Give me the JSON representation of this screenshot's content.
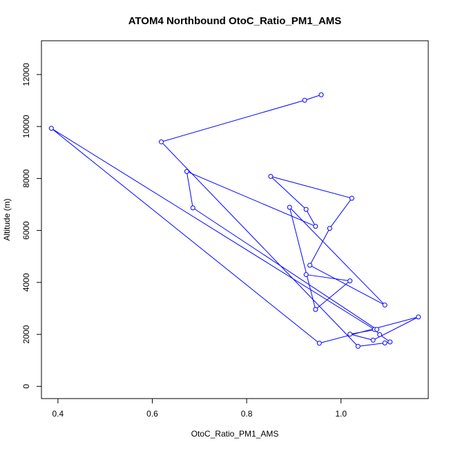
{
  "chart_data": {
    "type": "line",
    "title": "ATOM4 Northbound OtoC_Ratio_PM1_AMS",
    "xlabel": "OtoC_Ratio_PM1_AMS",
    "ylabel": "Altitude (m)",
    "xlim": [
      0.365,
      1.185
    ],
    "ylim": [
      -470,
      13300
    ],
    "x_ticks": [
      0.4,
      0.6,
      0.8,
      1.0
    ],
    "x_tick_labels": [
      "0.4",
      "0.6",
      "0.8",
      "1.0"
    ],
    "y_ticks": [
      0,
      2000,
      4000,
      6000,
      8000,
      10000,
      12000
    ],
    "y_tick_labels": [
      "0",
      "2000",
      "4000",
      "6000",
      "8000",
      "10000",
      "12000"
    ],
    "grid": false,
    "series": [
      {
        "color": "#0000ff",
        "marker": "open-circle",
        "points": [
          {
            "x": 0.958,
            "y": 11220
          },
          {
            "x": 0.923,
            "y": 11010
          },
          {
            "x": 0.619,
            "y": 9410
          },
          {
            "x": 1.036,
            "y": 1540
          },
          {
            "x": 1.093,
            "y": 1670
          },
          {
            "x": 1.104,
            "y": 1710
          },
          {
            "x": 1.082,
            "y": 1990
          },
          {
            "x": 1.071,
            "y": 2190
          },
          {
            "x": 0.386,
            "y": 9930
          },
          {
            "x": 0.954,
            "y": 1660
          },
          {
            "x": 1.164,
            "y": 2670
          },
          {
            "x": 1.068,
            "y": 1780
          },
          {
            "x": 1.019,
            "y": 2010
          },
          {
            "x": 1.076,
            "y": 2190
          },
          {
            "x": 0.686,
            "y": 6870
          },
          {
            "x": 0.673,
            "y": 8270
          },
          {
            "x": 0.946,
            "y": 6160
          },
          {
            "x": 0.926,
            "y": 6810
          },
          {
            "x": 0.851,
            "y": 8080
          },
          {
            "x": 1.023,
            "y": 7240
          },
          {
            "x": 0.976,
            "y": 6080
          },
          {
            "x": 0.934,
            "y": 4660
          },
          {
            "x": 1.093,
            "y": 3130
          },
          {
            "x": 0.891,
            "y": 6890
          },
          {
            "x": 0.946,
            "y": 2960
          },
          {
            "x": 1.019,
            "y": 4060
          },
          {
            "x": 0.926,
            "y": 4300
          }
        ]
      }
    ]
  }
}
